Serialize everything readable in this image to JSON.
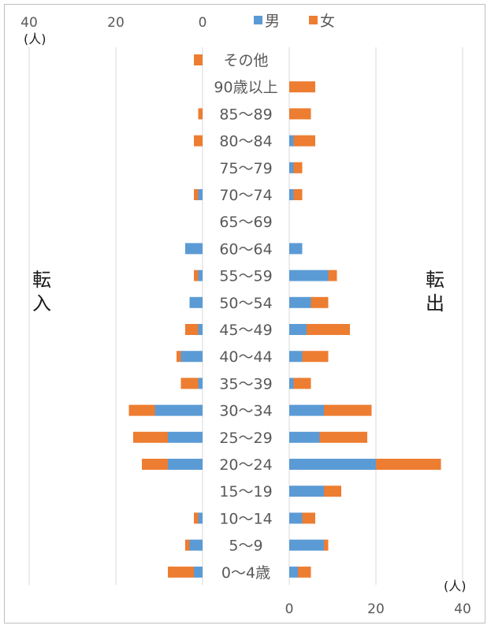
{
  "chart_data": {
    "type": "bar",
    "orientation": "horizontal",
    "layout": "butterfly",
    "legend": {
      "position": "top",
      "entries": [
        "男",
        "女"
      ]
    },
    "colors": {
      "男": "#5b9bd5",
      "女": "#ed7d31"
    },
    "categories": [
      "その他",
      "90歳以上",
      "85～89",
      "80～84",
      "75～79",
      "70～74",
      "65～69",
      "60～64",
      "55～59",
      "50～54",
      "45～49",
      "40～44",
      "35～39",
      "30～34",
      "25～29",
      "20～24",
      "15～19",
      "10～14",
      "5～9",
      "0～4歳"
    ],
    "left_panel": {
      "label": "転入",
      "unit": "(人)",
      "axis_ticks": [
        "40",
        "20",
        "0"
      ],
      "xlim": [
        40,
        0
      ],
      "series": [
        {
          "name": "男",
          "values": [
            0,
            0,
            0,
            0,
            0,
            1,
            0,
            4,
            1,
            3,
            1,
            5,
            1,
            11,
            8,
            8,
            0,
            1,
            3,
            2
          ]
        },
        {
          "name": "女",
          "values": [
            2,
            0,
            1,
            2,
            0,
            1,
            0,
            0,
            1,
            0,
            3,
            1,
            4,
            6,
            8,
            6,
            0,
            1,
            1,
            6
          ]
        }
      ]
    },
    "right_panel": {
      "label": "転出",
      "unit": "(人)",
      "axis_ticks": [
        "0",
        "20",
        "40"
      ],
      "xlim": [
        0,
        40
      ],
      "series": [
        {
          "name": "男",
          "values": [
            0,
            0,
            0,
            1,
            1,
            1,
            0,
            3,
            9,
            5,
            4,
            3,
            1,
            8,
            7,
            20,
            8,
            3,
            8,
            2
          ]
        },
        {
          "name": "女",
          "values": [
            0,
            6,
            5,
            5,
            2,
            2,
            0,
            0,
            2,
            4,
            10,
            6,
            4,
            11,
            11,
            15,
            4,
            3,
            1,
            3
          ]
        }
      ]
    }
  }
}
